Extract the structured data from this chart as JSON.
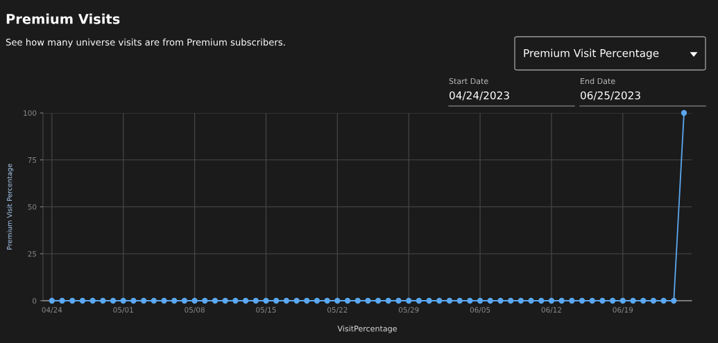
{
  "chart_data": {
    "type": "line",
    "title": "Premium Visits",
    "subtitle": "See how many universe visits are from Premium subscribers.",
    "xlabel": "VisitPercentage",
    "ylabel": "Premium Visit Percentage",
    "annotations": [
      "Premium Visit Percentage",
      "Start Date",
      "04/24/2023",
      "End Date",
      "06/25/2023"
    ],
    "x": [
      "2023-04-24",
      "2023-04-25",
      "2023-04-26",
      "2023-04-27",
      "2023-04-28",
      "2023-04-29",
      "2023-04-30",
      "2023-05-01",
      "2023-05-02",
      "2023-05-03",
      "2023-05-04",
      "2023-05-05",
      "2023-05-06",
      "2023-05-07",
      "2023-05-08",
      "2023-05-09",
      "2023-05-10",
      "2023-05-11",
      "2023-05-12",
      "2023-05-13",
      "2023-05-14",
      "2023-05-15",
      "2023-05-16",
      "2023-05-17",
      "2023-05-18",
      "2023-05-19",
      "2023-05-20",
      "2023-05-21",
      "2023-05-22",
      "2023-05-23",
      "2023-05-24",
      "2023-05-25",
      "2023-05-26",
      "2023-05-27",
      "2023-05-28",
      "2023-05-29",
      "2023-05-30",
      "2023-05-31",
      "2023-06-01",
      "2023-06-02",
      "2023-06-03",
      "2023-06-04",
      "2023-06-05",
      "2023-06-06",
      "2023-06-07",
      "2023-06-08",
      "2023-06-09",
      "2023-06-10",
      "2023-06-11",
      "2023-06-12",
      "2023-06-13",
      "2023-06-14",
      "2023-06-15",
      "2023-06-16",
      "2023-06-17",
      "2023-06-18",
      "2023-06-19",
      "2023-06-20",
      "2023-06-21",
      "2023-06-22",
      "2023-06-23",
      "2023-06-24",
      "2023-06-25"
    ],
    "series": [
      {
        "color": "#5ba8f0",
        "values": [
          0,
          0,
          0,
          0,
          0,
          0,
          0,
          0,
          0,
          0,
          0,
          0,
          0,
          0,
          0,
          0,
          0,
          0,
          0,
          0,
          0,
          0,
          0,
          0,
          0,
          0,
          0,
          0,
          0,
          0,
          0,
          0,
          0,
          0,
          0,
          0,
          0,
          0,
          0,
          0,
          0,
          0,
          0,
          0,
          0,
          0,
          0,
          0,
          0,
          0,
          0,
          0,
          0,
          0,
          0,
          0,
          0,
          0,
          0,
          0,
          0,
          0,
          100
        ]
      }
    ],
    "xlim": [
      "2023-04-23T03:00",
      "2023-06-25T18:00"
    ],
    "xticks": [
      {
        "value": "2023-04-24",
        "label": "04/24"
      },
      {
        "value": "2023-05-01",
        "label": "05/01"
      },
      {
        "value": "2023-05-08",
        "label": "05/08"
      },
      {
        "value": "2023-05-15",
        "label": "05/15"
      },
      {
        "value": "2023-05-22",
        "label": "05/22"
      },
      {
        "value": "2023-05-29",
        "label": "05/29"
      },
      {
        "value": "2023-06-05",
        "label": "06/05"
      },
      {
        "value": "2023-06-12",
        "label": "06/12"
      },
      {
        "value": "2023-06-19",
        "label": "06/19"
      }
    ],
    "ylim": [
      0,
      100
    ],
    "yticks": [
      0,
      25,
      50,
      75,
      100
    ],
    "grid": true,
    "marker": "circle",
    "line_style": "solid"
  }
}
